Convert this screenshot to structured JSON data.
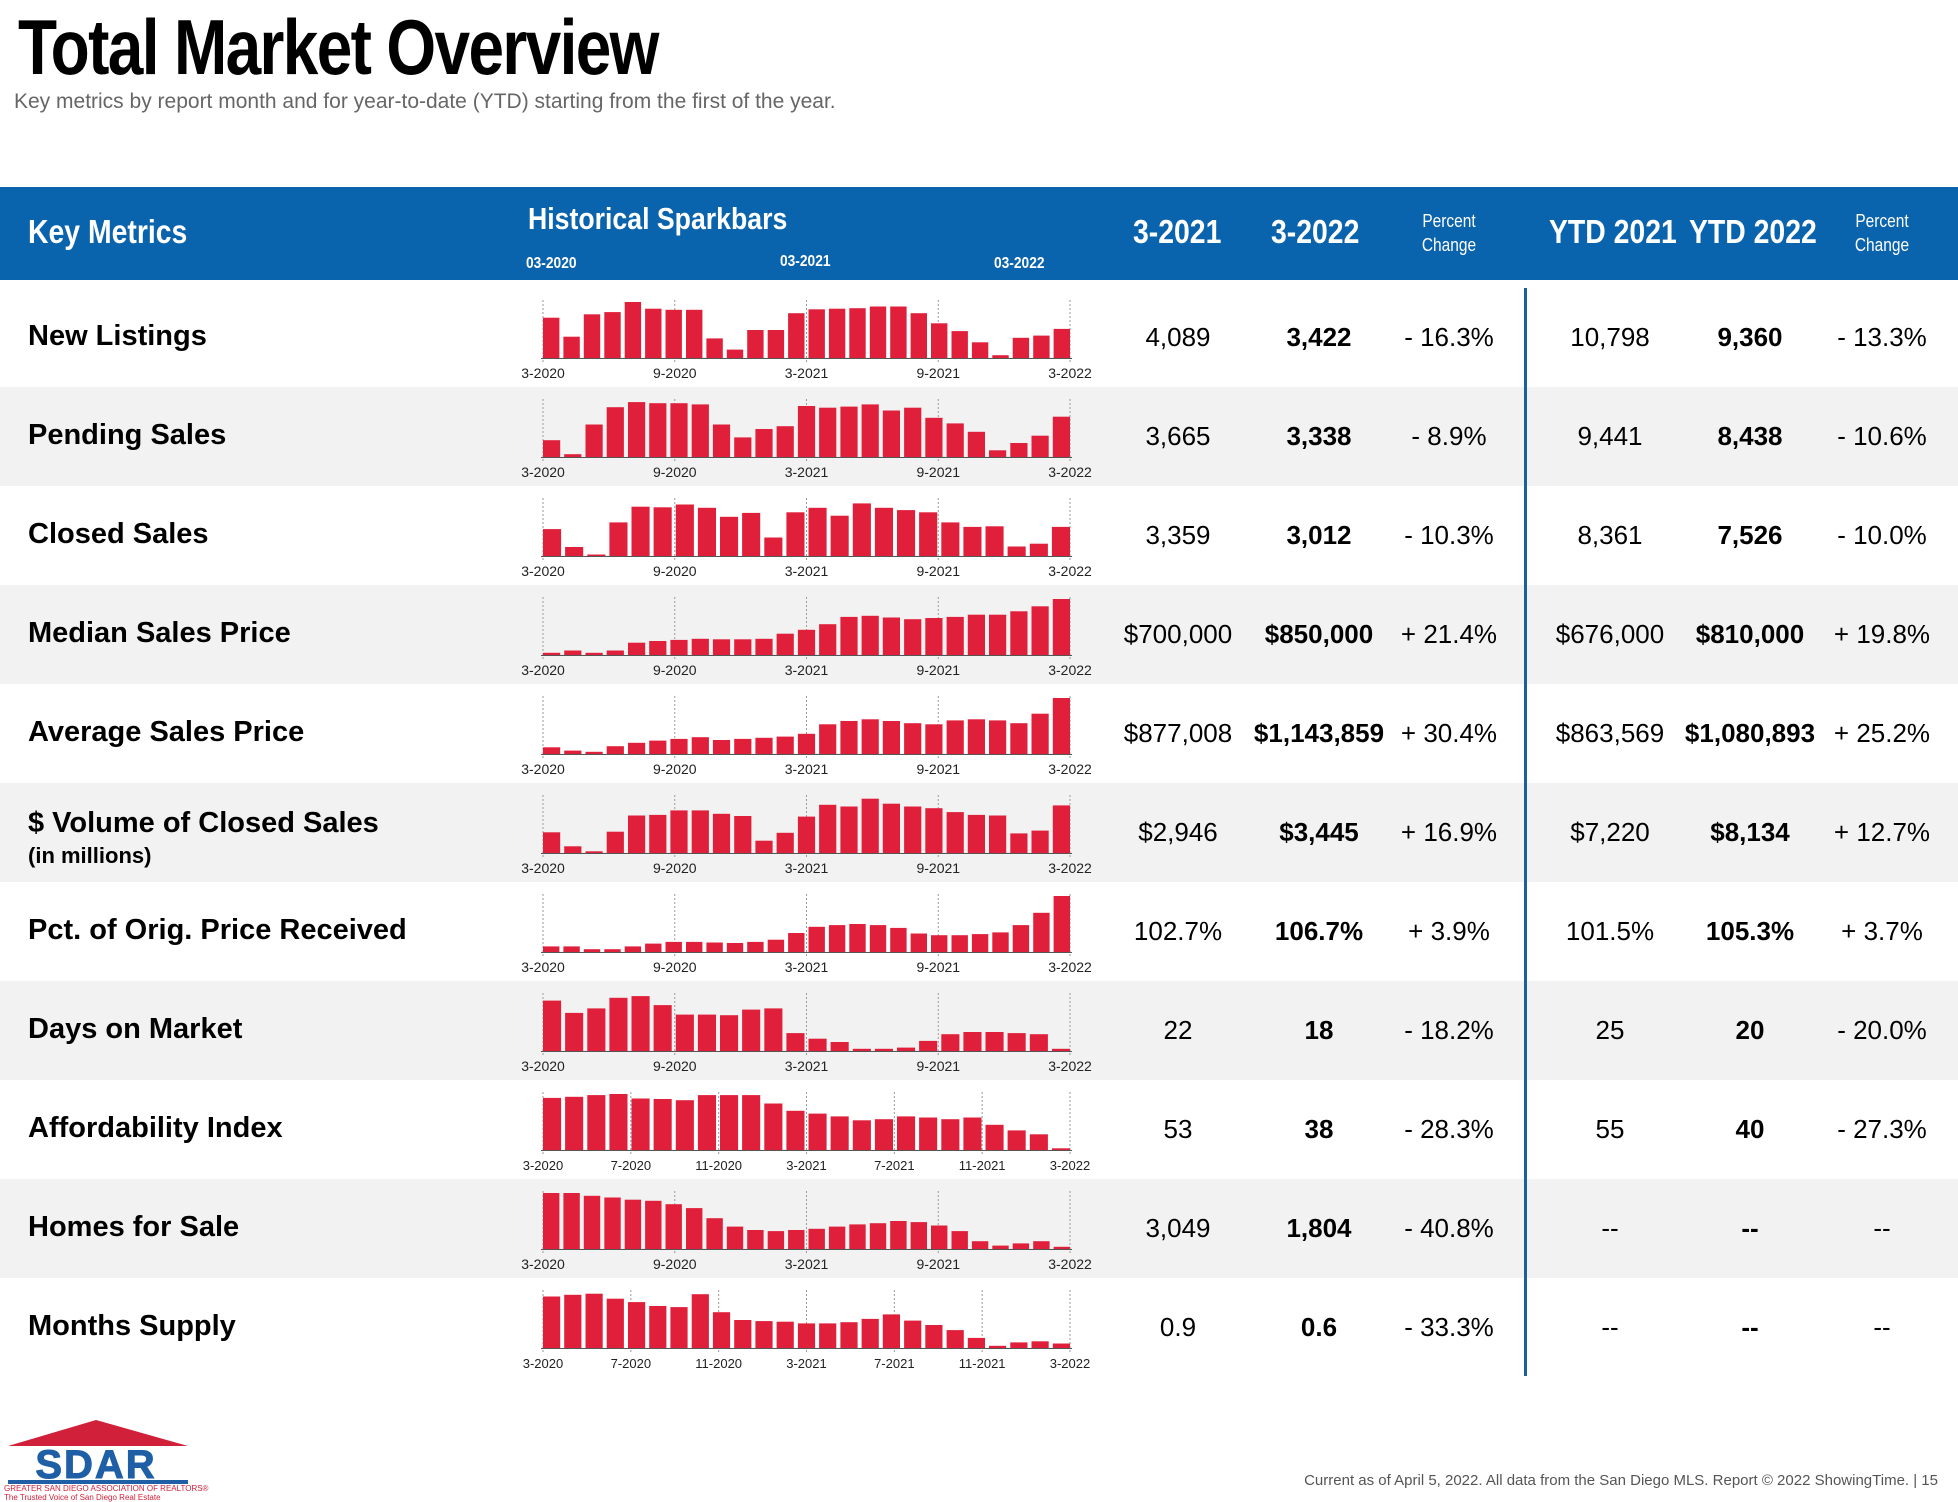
{
  "title": "Total Market Overview",
  "subtitle": "Key metrics by report month and for year-to-date (YTD) starting from the first of the year.",
  "header": {
    "key_metrics": "Key Metrics",
    "historical_sparkbars": "Historical Sparkbars",
    "spark_dates": [
      "03-2020",
      "03-2021",
      "03-2022"
    ],
    "col_prev": "3-2021",
    "col_curr": "3-2022",
    "pct_change_line1": "Percent",
    "pct_change_line2": "Change",
    "col_ytd_prev": "YTD 2021",
    "col_ytd_curr": "YTD 2022"
  },
  "colors": {
    "header_blue": "#0a63ad",
    "bar_red": "#e0203b",
    "divider_blue": "#1f5f99",
    "row_shade": "#f2f2f2"
  },
  "rows": [
    {
      "label": "New Listings",
      "sub": "",
      "prev": "4,089",
      "curr": "3,422",
      "pct": "- 16.3%",
      "ytd_prev": "10,798",
      "ytd_curr": "9,360",
      "ytd_pct": "- 13.3%",
      "axis": [
        "3-2020",
        "9-2020",
        "3-2021",
        "9-2021",
        "3-2022"
      ],
      "bars": [
        0.72,
        0.38,
        0.78,
        0.82,
        1.0,
        0.88,
        0.86,
        0.86,
        0.35,
        0.15,
        0.5,
        0.5,
        0.8,
        0.87,
        0.88,
        0.89,
        0.92,
        0.92,
        0.8,
        0.62,
        0.48,
        0.28,
        0.05,
        0.36,
        0.4,
        0.52
      ]
    },
    {
      "label": "Pending Sales",
      "sub": "",
      "prev": "3,665",
      "curr": "3,338",
      "pct": "- 8.9%",
      "ytd_prev": "9,441",
      "ytd_curr": "8,438",
      "ytd_pct": "- 10.6%",
      "axis": [
        "3-2020",
        "9-2020",
        "3-2021",
        "9-2021",
        "3-2022"
      ],
      "bars": [
        0.3,
        0.05,
        0.58,
        0.89,
        0.98,
        0.96,
        0.96,
        0.94,
        0.58,
        0.35,
        0.5,
        0.55,
        0.91,
        0.88,
        0.9,
        0.94,
        0.83,
        0.88,
        0.7,
        0.6,
        0.45,
        0.12,
        0.25,
        0.38,
        0.72
      ]
    },
    {
      "label": "Closed Sales",
      "sub": "",
      "prev": "3,359",
      "curr": "3,012",
      "pct": "- 10.3%",
      "ytd_prev": "8,361",
      "ytd_curr": "7,526",
      "ytd_pct": "- 10.0%",
      "axis": [
        "3-2020",
        "9-2020",
        "3-2021",
        "9-2021",
        "3-2022"
      ],
      "bars": [
        0.48,
        0.16,
        0.02,
        0.6,
        0.88,
        0.87,
        0.92,
        0.86,
        0.7,
        0.77,
        0.33,
        0.78,
        0.86,
        0.72,
        0.94,
        0.86,
        0.82,
        0.78,
        0.6,
        0.52,
        0.53,
        0.17,
        0.22,
        0.52
      ]
    },
    {
      "label": "Median Sales Price",
      "sub": "",
      "prev": "$700,000",
      "curr": "$850,000",
      "pct": "+ 21.4%",
      "ytd_prev": "$676,000",
      "ytd_curr": "$810,000",
      "ytd_pct": "+ 19.8%",
      "axis": [
        "3-2020",
        "9-2020",
        "3-2021",
        "9-2021",
        "3-2022"
      ],
      "bars": [
        0.04,
        0.08,
        0.04,
        0.08,
        0.22,
        0.25,
        0.27,
        0.29,
        0.28,
        0.28,
        0.29,
        0.38,
        0.45,
        0.55,
        0.68,
        0.7,
        0.67,
        0.64,
        0.66,
        0.68,
        0.72,
        0.72,
        0.78,
        0.87,
        1.0
      ]
    },
    {
      "label": "Average Sales Price",
      "sub": "",
      "prev": "$877,008",
      "curr": "$1,143,859",
      "pct": "+ 30.4%",
      "ytd_prev": "$863,569",
      "ytd_curr": "$1,080,893",
      "ytd_pct": "+ 25.2%",
      "axis": [
        "3-2020",
        "9-2020",
        "3-2021",
        "9-2021",
        "3-2022"
      ],
      "bars": [
        0.12,
        0.06,
        0.04,
        0.14,
        0.2,
        0.24,
        0.27,
        0.3,
        0.25,
        0.27,
        0.29,
        0.31,
        0.36,
        0.53,
        0.59,
        0.62,
        0.59,
        0.55,
        0.53,
        0.6,
        0.62,
        0.6,
        0.55,
        0.72,
        1.0
      ]
    },
    {
      "label": "$ Volume of Closed Sales",
      "sub": "(in millions)",
      "prev": "$2,946",
      "curr": "$3,445",
      "pct": "+ 16.9%",
      "ytd_prev": "$7,220",
      "ytd_curr": "$8,134",
      "ytd_pct": "+ 12.7%",
      "axis": [
        "3-2020",
        "9-2020",
        "3-2021",
        "9-2021",
        "3-2022"
      ],
      "bars": [
        0.37,
        0.12,
        0.03,
        0.38,
        0.67,
        0.68,
        0.76,
        0.76,
        0.7,
        0.66,
        0.22,
        0.36,
        0.65,
        0.86,
        0.83,
        0.97,
        0.88,
        0.83,
        0.8,
        0.73,
        0.68,
        0.67,
        0.35,
        0.4,
        0.85
      ]
    },
    {
      "label": "Pct. of Orig. Price Received",
      "sub": "",
      "prev": "102.7%",
      "curr": "106.7%",
      "pct": "+ 3.9%",
      "ytd_prev": "101.5%",
      "ytd_curr": "105.3%",
      "ytd_pct": "+ 3.7%",
      "axis": [
        "3-2020",
        "9-2020",
        "3-2021",
        "9-2021",
        "3-2022"
      ],
      "bars": [
        0.1,
        0.1,
        0.05,
        0.05,
        0.1,
        0.15,
        0.18,
        0.18,
        0.17,
        0.16,
        0.18,
        0.22,
        0.34,
        0.45,
        0.48,
        0.5,
        0.48,
        0.43,
        0.33,
        0.3,
        0.3,
        0.32,
        0.35,
        0.48,
        0.7,
        1.0
      ]
    },
    {
      "label": "Days on Market",
      "sub": "",
      "prev": "22",
      "curr": "18",
      "pct": "- 18.2%",
      "ytd_prev": "25",
      "ytd_curr": "20",
      "ytd_pct": "- 20.0%",
      "axis": [
        "3-2020",
        "9-2020",
        "3-2021",
        "9-2021",
        "3-2022"
      ],
      "bars": [
        0.9,
        0.68,
        0.76,
        0.95,
        0.98,
        0.82,
        0.65,
        0.65,
        0.64,
        0.74,
        0.76,
        0.32,
        0.22,
        0.16,
        0.04,
        0.04,
        0.06,
        0.18,
        0.3,
        0.34,
        0.34,
        0.32,
        0.3,
        0.04
      ]
    },
    {
      "label": "Affordability Index",
      "sub": "",
      "prev": "53",
      "curr": "38",
      "pct": "- 28.3%",
      "ytd_prev": "55",
      "ytd_curr": "40",
      "ytd_pct": "- 27.3%",
      "axis": [
        "3-2020",
        "7-2020",
        "11-2020",
        "3-2021",
        "7-2021",
        "11-2021",
        "3-2022"
      ],
      "bars": [
        0.93,
        0.95,
        0.98,
        1.0,
        0.92,
        0.91,
        0.89,
        0.98,
        0.98,
        0.98,
        0.83,
        0.7,
        0.65,
        0.6,
        0.53,
        0.55,
        0.6,
        0.58,
        0.55,
        0.58,
        0.45,
        0.35,
        0.28,
        0.03
      ]
    },
    {
      "label": "Homes for Sale",
      "sub": "",
      "prev": "3,049",
      "curr": "1,804",
      "pct": "- 40.8%",
      "ytd_prev": "--",
      "ytd_curr": "--",
      "ytd_pct": "--",
      "axis": [
        "3-2020",
        "9-2020",
        "3-2021",
        "9-2021",
        "3-2022"
      ],
      "bars": [
        1.0,
        1.0,
        0.95,
        0.92,
        0.88,
        0.86,
        0.8,
        0.73,
        0.55,
        0.4,
        0.34,
        0.32,
        0.34,
        0.36,
        0.4,
        0.44,
        0.46,
        0.5,
        0.48,
        0.42,
        0.32,
        0.14,
        0.06,
        0.1,
        0.14,
        0.04
      ]
    },
    {
      "label": "Months Supply",
      "sub": "",
      "prev": "0.9",
      "curr": "0.6",
      "pct": "- 33.3%",
      "ytd_prev": "--",
      "ytd_curr": "--",
      "ytd_pct": "--",
      "axis": [
        "3-2020",
        "7-2020",
        "11-2020",
        "3-2021",
        "7-2021",
        "11-2021",
        "3-2022"
      ],
      "bars": [
        0.92,
        0.95,
        0.97,
        0.88,
        0.82,
        0.75,
        0.73,
        0.96,
        0.64,
        0.5,
        0.48,
        0.47,
        0.44,
        0.44,
        0.46,
        0.52,
        0.6,
        0.49,
        0.41,
        0.32,
        0.18,
        0.04,
        0.1,
        0.12,
        0.08
      ]
    }
  ],
  "logo": {
    "wordmark": "SDAR",
    "association": "GREATER SAN DIEGO ASSOCIATION OF REALTORS®",
    "tagline": "The Trusted Voice of San Diego Real Estate"
  },
  "footer": "Current as of April 5, 2022. All data from the San Diego MLS. Report © 2022 ShowingTime.  |  15"
}
